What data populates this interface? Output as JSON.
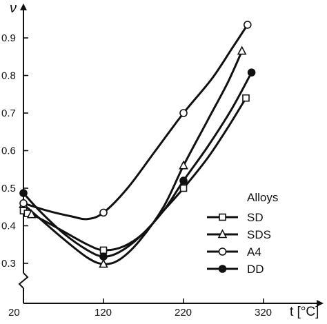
{
  "chart_data": {
    "type": "line",
    "ylabel": "ν",
    "xlabel": "t [°C]",
    "x_ticks": [
      20,
      120,
      220,
      320
    ],
    "y_ticks": [
      0.3,
      0.4,
      0.5,
      0.6,
      0.7,
      0.8,
      0.9
    ],
    "xlim": [
      20,
      345
    ],
    "ylim": [
      0.25,
      0.98
    ],
    "grid": false,
    "legend_title": "Alloys",
    "legend_position": "right",
    "series": [
      {
        "name": "SD",
        "marker": "square",
        "points": [
          [
            20,
            0.44
          ],
          [
            25,
            0.433
          ],
          [
            120,
            0.335
          ],
          [
            220,
            0.5
          ],
          [
            298,
            0.74
          ]
        ],
        "curve": [
          [
            20,
            0.44
          ],
          [
            40,
            0.42
          ],
          [
            70,
            0.385
          ],
          [
            100,
            0.35
          ],
          [
            120,
            0.335
          ],
          [
            145,
            0.345
          ],
          [
            170,
            0.38
          ],
          [
            195,
            0.44
          ],
          [
            220,
            0.5
          ],
          [
            250,
            0.58
          ],
          [
            275,
            0.66
          ],
          [
            298,
            0.74
          ]
        ]
      },
      {
        "name": "SDS",
        "marker": "triangle",
        "points": [
          [
            20,
            0.457
          ],
          [
            30,
            0.43
          ],
          [
            120,
            0.298
          ],
          [
            220,
            0.56
          ],
          [
            293,
            0.865
          ]
        ],
        "curve": [
          [
            20,
            0.457
          ],
          [
            40,
            0.42
          ],
          [
            70,
            0.365
          ],
          [
            100,
            0.315
          ],
          [
            120,
            0.298
          ],
          [
            140,
            0.31
          ],
          [
            165,
            0.36
          ],
          [
            195,
            0.45
          ],
          [
            220,
            0.56
          ],
          [
            250,
            0.68
          ],
          [
            275,
            0.78
          ],
          [
            293,
            0.865
          ]
        ]
      },
      {
        "name": "A4",
        "marker": "circle-open",
        "points": [
          [
            20,
            0.46
          ],
          [
            120,
            0.435
          ],
          [
            220,
            0.7
          ],
          [
            300,
            0.935
          ]
        ],
        "curve": [
          [
            20,
            0.46
          ],
          [
            50,
            0.44
          ],
          [
            80,
            0.425
          ],
          [
            100,
            0.418
          ],
          [
            120,
            0.435
          ],
          [
            150,
            0.5
          ],
          [
            185,
            0.6
          ],
          [
            220,
            0.7
          ],
          [
            255,
            0.79
          ],
          [
            280,
            0.87
          ],
          [
            300,
            0.935
          ]
        ]
      },
      {
        "name": "DD",
        "marker": "circle-filled",
        "points": [
          [
            20,
            0.487
          ],
          [
            120,
            0.318
          ],
          [
            220,
            0.52
          ],
          [
            305,
            0.808
          ]
        ],
        "curve": [
          [
            20,
            0.487
          ],
          [
            40,
            0.44
          ],
          [
            70,
            0.38
          ],
          [
            100,
            0.335
          ],
          [
            120,
            0.318
          ],
          [
            140,
            0.33
          ],
          [
            165,
            0.37
          ],
          [
            195,
            0.44
          ],
          [
            220,
            0.52
          ],
          [
            250,
            0.61
          ],
          [
            280,
            0.71
          ],
          [
            305,
            0.808
          ]
        ]
      }
    ]
  }
}
